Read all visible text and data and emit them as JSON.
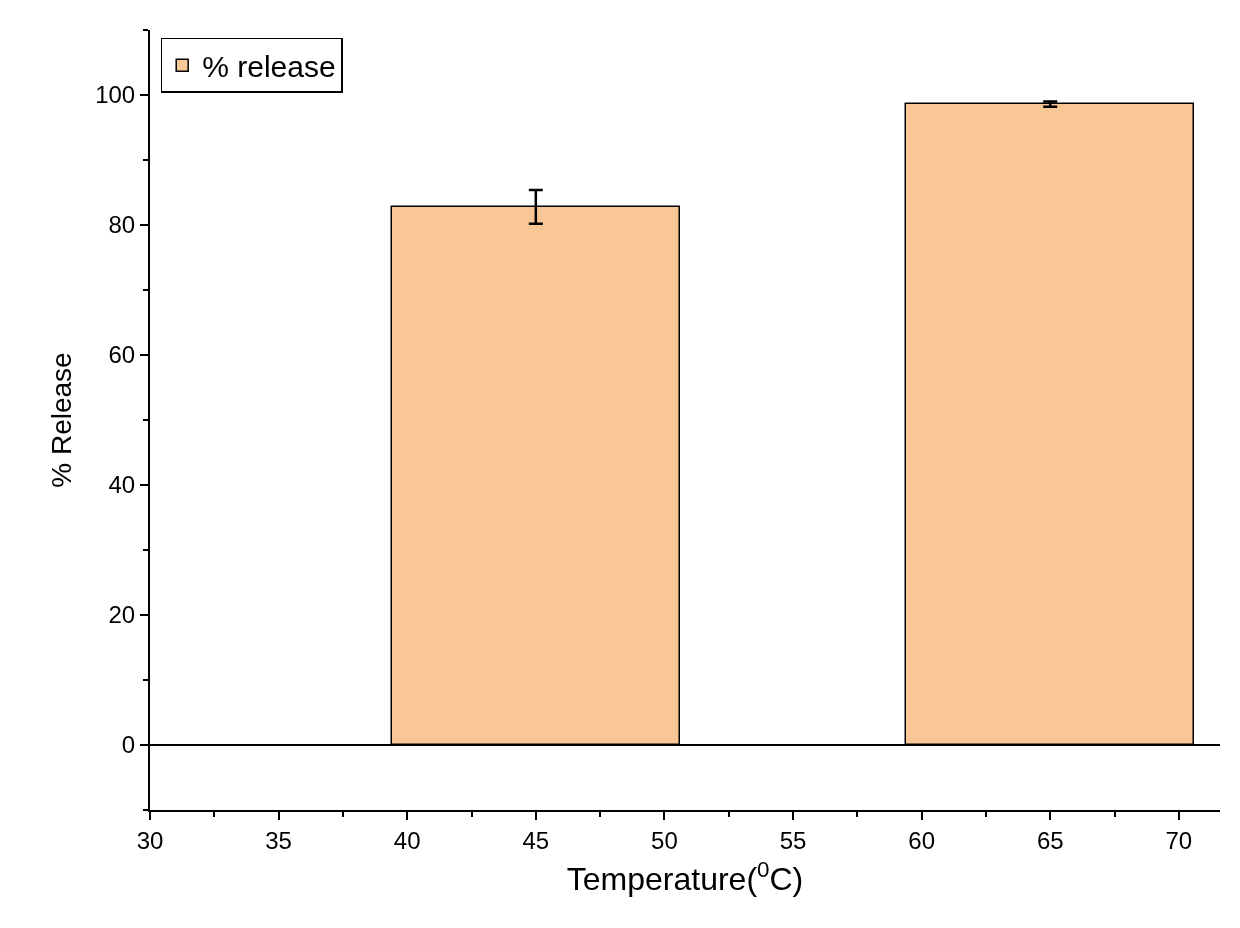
{
  "chart_data": {
    "type": "bar",
    "xlabel": "Temperature($^{0}$C)",
    "ylabel": "% Release",
    "x": [
      45,
      65
    ],
    "series": [
      {
        "name": "% release",
        "color": "#f9c696",
        "values": [
          82.8,
          98.6
        ],
        "errors": [
          2.6,
          0.4
        ]
      }
    ],
    "xlim": [
      30,
      71.6
    ],
    "xticks": [
      30,
      35,
      40,
      45,
      50,
      55,
      60,
      65,
      70
    ],
    "ylim": [
      -10,
      110
    ],
    "yticks": [
      0,
      20,
      40,
      60,
      80,
      100
    ],
    "ref_lines": [
      {
        "axis": "y",
        "value": 0,
        "color": "#000000"
      }
    ],
    "legend": "top left"
  }
}
